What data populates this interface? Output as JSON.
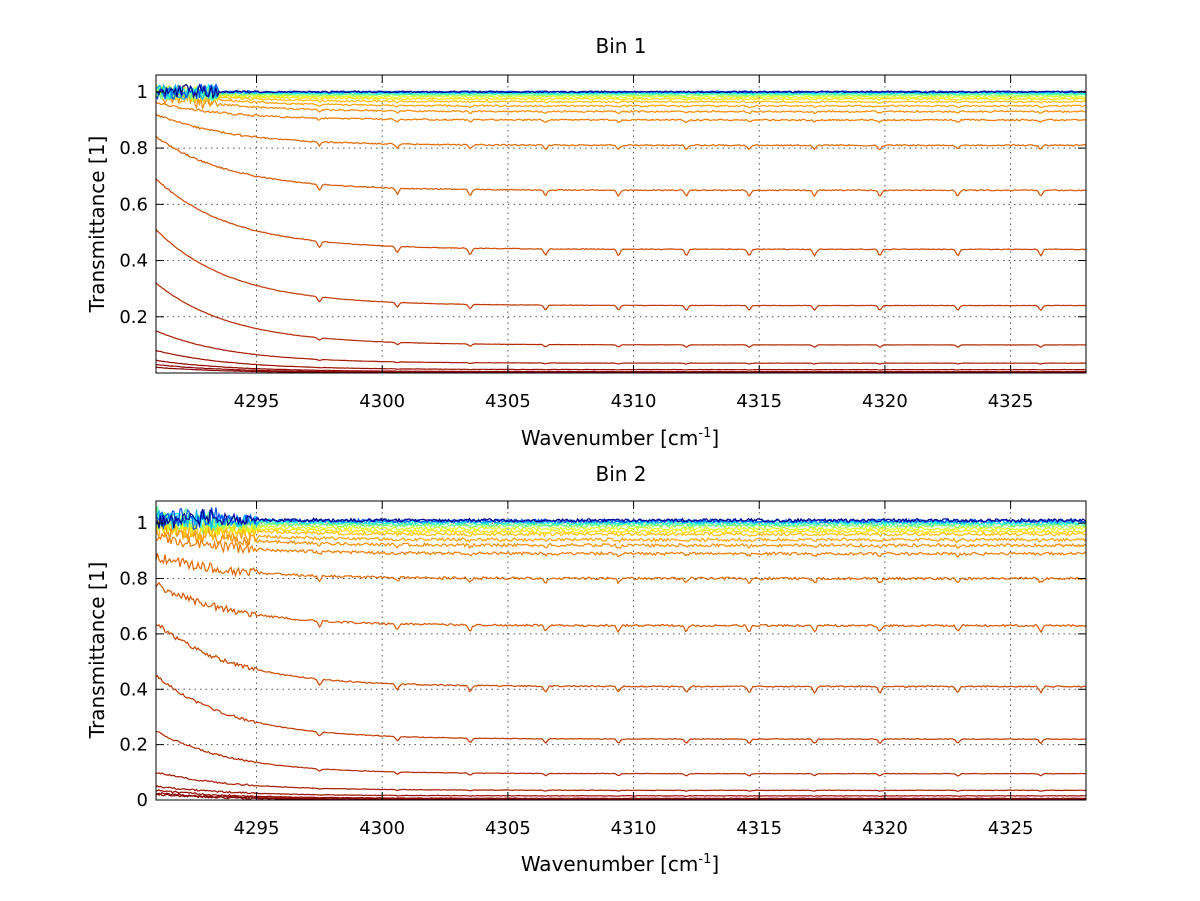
{
  "chart_data": [
    {
      "type": "line",
      "title": "Bin 1",
      "xlabel": "Wavenumber [cm",
      "xlabel_sup": "-1",
      "xlabel_end": "]",
      "ylabel": "Transmittance [1]",
      "xlim": [
        4291,
        4328
      ],
      "ylim": [
        0,
        1.06
      ],
      "xticks": [
        4295,
        4300,
        4305,
        4310,
        4315,
        4320,
        4325
      ],
      "xtick_labels": [
        "4295",
        "4300",
        "4305",
        "4310",
        "4315",
        "4320",
        "4325"
      ],
      "yticks": [
        0.2,
        0.4,
        0.6,
        0.8,
        1.0
      ],
      "ytick_labels": [
        "0.2",
        "0.4",
        "0.6",
        "0.8",
        "1"
      ],
      "grid": true,
      "legend": "none",
      "absorption_lines": [
        4297.5,
        4300.6,
        4303.5,
        4306.5,
        4309.4,
        4312.1,
        4314.6,
        4317.2,
        4319.8,
        4322.9,
        4326.2
      ],
      "series": [
        {
          "start": 1.0,
          "plateau": 1.0,
          "color": "#00008f"
        },
        {
          "start": 1.0,
          "plateau": 1.0,
          "color": "#0050ff"
        },
        {
          "start": 1.0,
          "plateau": 0.998,
          "color": "#00b0ff"
        },
        {
          "start": 1.0,
          "plateau": 0.995,
          "color": "#20ffdf"
        },
        {
          "start": 1.0,
          "plateau": 0.992,
          "color": "#60ff9f"
        },
        {
          "start": 1.0,
          "plateau": 0.988,
          "color": "#a0ff60"
        },
        {
          "start": 1.0,
          "plateau": 0.982,
          "color": "#dfff20"
        },
        {
          "start": 1.0,
          "plateau": 0.975,
          "color": "#ffe000"
        },
        {
          "start": 1.0,
          "plateau": 0.965,
          "color": "#ffc000"
        },
        {
          "start": 1.0,
          "plateau": 0.95,
          "color": "#ffa000"
        },
        {
          "start": 0.99,
          "plateau": 0.93,
          "color": "#f58c00"
        },
        {
          "start": 0.96,
          "plateau": 0.9,
          "color": "#ec7a00"
        },
        {
          "start": 0.92,
          "plateau": 0.81,
          "color": "#e06800"
        },
        {
          "start": 0.84,
          "plateau": 0.65,
          "color": "#d85800"
        },
        {
          "start": 0.69,
          "plateau": 0.44,
          "color": "#cc4800"
        },
        {
          "start": 0.51,
          "plateau": 0.24,
          "color": "#c23800"
        },
        {
          "start": 0.32,
          "plateau": 0.1,
          "color": "#b42800"
        },
        {
          "start": 0.15,
          "plateau": 0.035,
          "color": "#a81a00"
        },
        {
          "start": 0.08,
          "plateau": 0.012,
          "color": "#9c0f00"
        },
        {
          "start": 0.045,
          "plateau": 0.005,
          "color": "#920700"
        },
        {
          "start": 0.03,
          "plateau": 0.002,
          "color": "#880000"
        },
        {
          "start": 0.02,
          "plateau": 0.0,
          "color": "#800000"
        }
      ]
    },
    {
      "type": "line",
      "title": "Bin 2",
      "xlabel": "Wavenumber [cm",
      "xlabel_sup": "-1",
      "xlabel_end": "]",
      "ylabel": "Transmittance [1]",
      "xlim": [
        4291,
        4328
      ],
      "ylim": [
        0,
        1.08
      ],
      "xticks": [
        4295,
        4300,
        4305,
        4310,
        4315,
        4320,
        4325
      ],
      "xtick_labels": [
        "4295",
        "4300",
        "4305",
        "4310",
        "4315",
        "4320",
        "4325"
      ],
      "yticks": [
        0,
        0.2,
        0.4,
        0.6,
        0.8,
        1.0
      ],
      "ytick_labels": [
        "0",
        "0.2",
        "0.4",
        "0.6",
        "0.8",
        "1"
      ],
      "grid": true,
      "legend": "none",
      "absorption_lines": [
        4297.5,
        4300.6,
        4303.5,
        4306.5,
        4309.4,
        4312.1,
        4314.6,
        4317.2,
        4319.8,
        4322.9,
        4326.2
      ],
      "series": [
        {
          "start": 1.02,
          "plateau": 1.01,
          "color": "#00008f"
        },
        {
          "start": 1.02,
          "plateau": 1.008,
          "color": "#0050ff"
        },
        {
          "start": 1.02,
          "plateau": 1.005,
          "color": "#00b0ff"
        },
        {
          "start": 1.02,
          "plateau": 1.0,
          "color": "#20ffdf"
        },
        {
          "start": 1.02,
          "plateau": 0.995,
          "color": "#60ff9f"
        },
        {
          "start": 1.01,
          "plateau": 0.99,
          "color": "#a0ff60"
        },
        {
          "start": 1.01,
          "plateau": 0.98,
          "color": "#dfff20"
        },
        {
          "start": 1.0,
          "plateau": 0.97,
          "color": "#ffe000"
        },
        {
          "start": 1.0,
          "plateau": 0.96,
          "color": "#ffc000"
        },
        {
          "start": 0.99,
          "plateau": 0.94,
          "color": "#ffa000"
        },
        {
          "start": 0.98,
          "plateau": 0.92,
          "color": "#f58c00"
        },
        {
          "start": 0.95,
          "plateau": 0.89,
          "color": "#ec7a00"
        },
        {
          "start": 0.88,
          "plateau": 0.8,
          "color": "#e06800"
        },
        {
          "start": 0.78,
          "plateau": 0.63,
          "color": "#d85800"
        },
        {
          "start": 0.64,
          "plateau": 0.41,
          "color": "#cc4800"
        },
        {
          "start": 0.45,
          "plateau": 0.22,
          "color": "#c23800"
        },
        {
          "start": 0.25,
          "plateau": 0.095,
          "color": "#b42800"
        },
        {
          "start": 0.1,
          "plateau": 0.035,
          "color": "#a81a00"
        },
        {
          "start": 0.05,
          "plateau": 0.015,
          "color": "#9c0f00"
        },
        {
          "start": 0.035,
          "plateau": 0.006,
          "color": "#920700"
        },
        {
          "start": 0.025,
          "plateau": 0.003,
          "color": "#880000"
        },
        {
          "start": 0.02,
          "plateau": 0.0,
          "color": "#800000"
        }
      ]
    }
  ]
}
